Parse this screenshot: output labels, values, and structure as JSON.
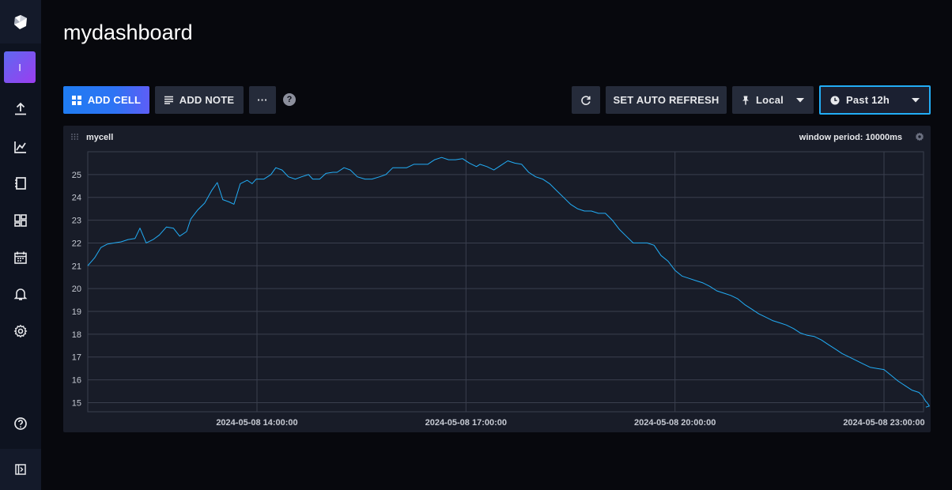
{
  "page": {
    "title": "mydashboard"
  },
  "sidebar": {
    "org_initial": "I",
    "items": [
      {
        "icon": "upload-icon"
      },
      {
        "icon": "graph-icon"
      },
      {
        "icon": "notebook-icon"
      },
      {
        "icon": "dashboards-icon"
      },
      {
        "icon": "calendar-icon"
      },
      {
        "icon": "bell-icon"
      },
      {
        "icon": "gear-icon"
      }
    ],
    "help_icon": "help-icon",
    "collapse_icon": "collapse-icon"
  },
  "toolbar": {
    "add_cell": "ADD CELL",
    "add_note": "ADD NOTE",
    "more": "···",
    "help": "?",
    "auto_refresh": "SET AUTO REFRESH",
    "timezone": "Local",
    "time_range": "Past 12h"
  },
  "cell": {
    "name": "mycell",
    "window_period": "window period: 10000ms"
  },
  "colors": {
    "accent": "#22adf6",
    "line": "#22adf6",
    "primary": "#2e73f4"
  },
  "chart_data": {
    "type": "line",
    "ylim": [
      14.6,
      26.0
    ],
    "yticks": [
      15,
      16,
      17,
      18,
      19,
      20,
      21,
      22,
      23,
      24,
      25
    ],
    "xticks": [
      {
        "label": "2024-05-08 14:00:00",
        "t": 2.0
      },
      {
        "label": "2024-05-08 17:00:00",
        "t": 5.0
      },
      {
        "label": "2024-05-08 20:00:00",
        "t": 8.0
      },
      {
        "label": "2024-05-08 23:00:00",
        "t": 11.0
      }
    ],
    "x_range_hours": [
      -0.43,
      11.6
    ],
    "series": [
      {
        "values": [
          [
            -0.43,
            21.0
          ],
          [
            -0.33,
            21.35
          ],
          [
            -0.24,
            21.8
          ],
          [
            -0.15,
            21.95
          ],
          [
            -0.05,
            22.0
          ],
          [
            0.05,
            22.05
          ],
          [
            0.15,
            22.15
          ],
          [
            0.25,
            22.2
          ],
          [
            0.32,
            22.65
          ],
          [
            0.41,
            22.0
          ],
          [
            0.51,
            22.15
          ],
          [
            0.6,
            22.35
          ],
          [
            0.7,
            22.7
          ],
          [
            0.8,
            22.65
          ],
          [
            0.89,
            22.3
          ],
          [
            0.99,
            22.5
          ],
          [
            1.05,
            23.05
          ],
          [
            1.15,
            23.45
          ],
          [
            1.25,
            23.75
          ],
          [
            1.35,
            24.3
          ],
          [
            1.43,
            24.65
          ],
          [
            1.51,
            23.9
          ],
          [
            1.6,
            23.8
          ],
          [
            1.67,
            23.7
          ],
          [
            1.76,
            24.6
          ],
          [
            1.86,
            24.75
          ],
          [
            1.93,
            24.6
          ],
          [
            1.99,
            24.8
          ],
          [
            2.1,
            24.8
          ],
          [
            2.2,
            25.0
          ],
          [
            2.27,
            25.3
          ],
          [
            2.36,
            25.2
          ],
          [
            2.45,
            24.9
          ],
          [
            2.55,
            24.8
          ],
          [
            2.64,
            24.9
          ],
          [
            2.74,
            25.0
          ],
          [
            2.8,
            24.8
          ],
          [
            2.9,
            24.8
          ],
          [
            2.99,
            25.05
          ],
          [
            3.09,
            25.1
          ],
          [
            3.15,
            25.1
          ],
          [
            3.25,
            25.3
          ],
          [
            3.34,
            25.2
          ],
          [
            3.44,
            24.9
          ],
          [
            3.55,
            24.8
          ],
          [
            3.65,
            24.8
          ],
          [
            3.76,
            24.9
          ],
          [
            3.85,
            25.0
          ],
          [
            3.95,
            25.3
          ],
          [
            4.05,
            25.3
          ],
          [
            4.15,
            25.3
          ],
          [
            4.25,
            25.45
          ],
          [
            4.35,
            25.45
          ],
          [
            4.45,
            25.45
          ],
          [
            4.55,
            25.65
          ],
          [
            4.65,
            25.75
          ],
          [
            4.75,
            25.65
          ],
          [
            4.85,
            25.65
          ],
          [
            4.95,
            25.7
          ],
          [
            5.05,
            25.5
          ],
          [
            5.15,
            25.35
          ],
          [
            5.2,
            25.45
          ],
          [
            5.3,
            25.35
          ],
          [
            5.4,
            25.2
          ],
          [
            5.5,
            25.4
          ],
          [
            5.6,
            25.6
          ],
          [
            5.7,
            25.5
          ],
          [
            5.8,
            25.45
          ],
          [
            5.9,
            25.1
          ],
          [
            6.0,
            24.9
          ],
          [
            6.1,
            24.8
          ],
          [
            6.2,
            24.6
          ],
          [
            6.3,
            24.3
          ],
          [
            6.4,
            24.0
          ],
          [
            6.5,
            23.7
          ],
          [
            6.6,
            23.5
          ],
          [
            6.7,
            23.4
          ],
          [
            6.8,
            23.4
          ],
          [
            6.9,
            23.3
          ],
          [
            7.0,
            23.3
          ],
          [
            7.1,
            23.0
          ],
          [
            7.2,
            22.6
          ],
          [
            7.3,
            22.3
          ],
          [
            7.4,
            22.0
          ],
          [
            7.5,
            22.0
          ],
          [
            7.6,
            22.0
          ],
          [
            7.7,
            21.9
          ],
          [
            7.8,
            21.45
          ],
          [
            7.9,
            21.2
          ],
          [
            8.0,
            20.8
          ],
          [
            8.1,
            20.55
          ],
          [
            8.2,
            20.45
          ],
          [
            8.3,
            20.35
          ],
          [
            8.4,
            20.25
          ],
          [
            8.5,
            20.1
          ],
          [
            8.6,
            19.9
          ],
          [
            8.7,
            19.8
          ],
          [
            8.8,
            19.7
          ],
          [
            8.9,
            19.55
          ],
          [
            9.0,
            19.3
          ],
          [
            9.1,
            19.1
          ],
          [
            9.2,
            18.9
          ],
          [
            9.3,
            18.75
          ],
          [
            9.4,
            18.6
          ],
          [
            9.5,
            18.5
          ],
          [
            9.6,
            18.4
          ],
          [
            9.7,
            18.25
          ],
          [
            9.8,
            18.05
          ],
          [
            9.9,
            17.95
          ],
          [
            10.0,
            17.9
          ],
          [
            10.1,
            17.75
          ],
          [
            10.2,
            17.55
          ],
          [
            10.3,
            17.35
          ],
          [
            10.4,
            17.15
          ],
          [
            10.5,
            17.0
          ],
          [
            10.6,
            16.85
          ],
          [
            10.7,
            16.7
          ],
          [
            10.8,
            16.55
          ],
          [
            10.9,
            16.5
          ],
          [
            11.0,
            16.45
          ],
          [
            11.1,
            16.2
          ],
          [
            11.2,
            15.95
          ],
          [
            11.3,
            15.75
          ],
          [
            11.4,
            15.55
          ],
          [
            11.5,
            15.45
          ],
          [
            11.55,
            15.3
          ],
          [
            11.6,
            15.05
          ],
          [
            11.62,
            15.0
          ],
          [
            11.65,
            14.85
          ],
          [
            11.6,
            14.8
          ]
        ]
      }
    ]
  }
}
